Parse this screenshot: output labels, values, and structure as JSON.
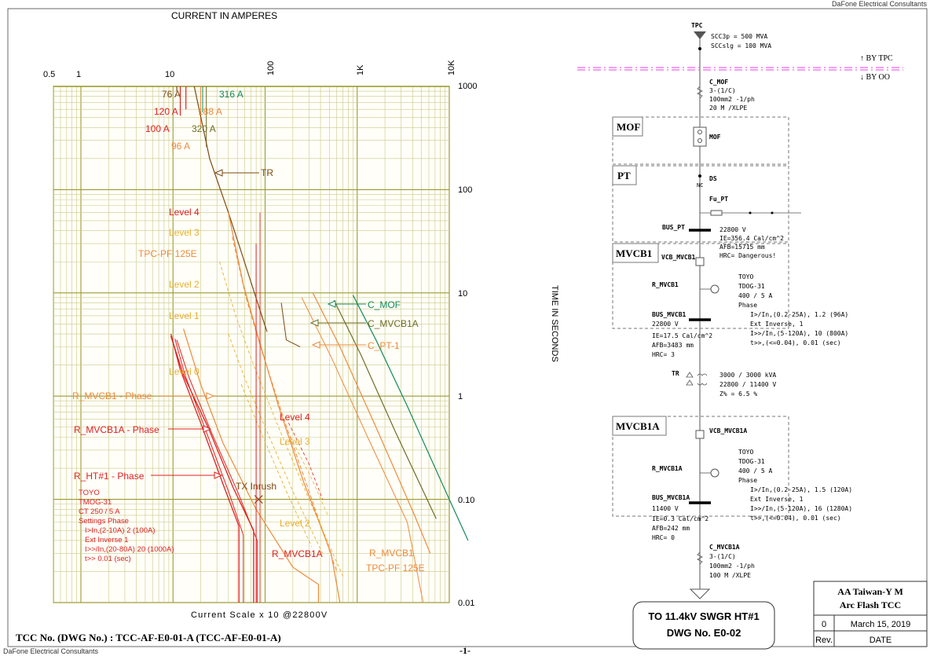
{
  "header": {
    "company_top": "DaFone Electrical Consultants",
    "company_bottom": "DaFone Electrical Consultants"
  },
  "tcc": {
    "x_title": "CURRENT IN AMPERES",
    "x_ticks": [
      "0.5",
      "1",
      "10",
      "100",
      "1K",
      "10K"
    ],
    "y_ticks": [
      "1000",
      "100",
      "10",
      "1",
      "0.10",
      "0.01"
    ],
    "y_title": "TIME IN SECONDS",
    "bottom_scale": "Current Scale  x 10  @22800V",
    "colors": {
      "grid_major": "#9b9b2f",
      "grid_minor": "#c9c98a",
      "red": "#e02020",
      "orange": "#ee8a3a",
      "gold": "#e8b030",
      "brown": "#7a4a12",
      "olive": "#6e6e28",
      "green": "#138a5a"
    },
    "labels": {
      "a76": "76 A",
      "a316": "316 A",
      "a120": "120 A",
      "a188": "188 A",
      "a100": "100 A",
      "a320": "320 A",
      "a96": "96 A",
      "tr": "TR",
      "level4": "Level 4",
      "level3": "Level 3",
      "tpc_pf": "TPC-PF 125E",
      "level2": "Level 2",
      "level1": "Level 1",
      "level0": "Level 0",
      "c_mof": "C_MOF",
      "c_mvcb1a": "C_MVCB1A",
      "c_pt1": "C_PT-1",
      "r_mvcb1": "R_MVCB1 - Phase",
      "r_mvcb1a": "R_MVCB1A - Phase",
      "r_ht1": "R_HT#1 - Phase",
      "level4b": "Level 4",
      "level3b": "Level 3",
      "tx_inrush": "TX Inrush",
      "level2b": "Level 2",
      "r_mvcb1a_bottom": "R_MVCB1A",
      "r_mvcb1_bottom": "R_MVCB1",
      "tpc_pf_bottom": "TPC-PF 125E"
    },
    "relay_note": [
      "TOYO",
      "TMOG-31",
      "CT 250 / 5 A",
      "Settings Phase",
      "I>In,(2-10A) 2 (100A)",
      "Ext Inverse 1",
      "I>>/In,(20-80A) 20 (1000A)",
      "t>> 0.01 (sec)"
    ]
  },
  "sld": {
    "tpc": "TPC",
    "scc": [
      "SCC3p = 500 MVA",
      "SCCslg = 100 MVA"
    ],
    "by_tpc": "↑ BY  TPC",
    "by_oo": "↓ BY  OO",
    "c_mof": {
      "name": "C_MOF",
      "lines": [
        "3-(1/C)",
        "100mm2 -1/ph",
        "20 M /XLPE"
      ]
    },
    "mof_box": "MOF",
    "mof_label": "MOF",
    "pt_box": "PT",
    "ds": "DS",
    "nc": "NC",
    "fu_pt": "Fu_PT",
    "bus_pt": {
      "name": "BUS_PT",
      "lines": [
        "22800  V",
        "IE=356.4 Cal/cm^2",
        "AFB=15715  mm",
        "HRC= Dangerous!"
      ]
    },
    "mvcb1_box": "MVCB1",
    "vcb_mvcb1": "VCB_MVCB1",
    "r_mvcb1": {
      "name": "R_MVCB1",
      "lines": [
        "TOYO",
        "TDOG-31",
        "400 / 5 A",
        "Phase",
        "I>/In,(0.2-25A), 1.2 (96A)",
        "Ext Inverse, 1",
        "I>>/In,(5-120A), 10 (800A)",
        "t>>,(<=0.04), 0.01 (sec)"
      ]
    },
    "bus_mvcb1": {
      "name": "BUS_MVCB1",
      "lines": [
        "22800  V",
        "IE=17.5 Cal/cm^2",
        "AFB=3483 mm",
        "HRC= 3"
      ]
    },
    "tr": {
      "name": "TR",
      "lines": [
        "3000 / 3000 kVA",
        "22800 / 11400 V",
        "Z% = 6.5 %"
      ]
    },
    "mvcb1a_box": "MVCB1A",
    "vcb_mvcb1a": "VCB_MVCB1A",
    "r_mvcb1a": {
      "name": "R_MVCB1A",
      "lines": [
        "TOYO",
        "TDOG-31",
        "400 / 5 A",
        "Phase",
        "I>/In,(0.2-25A), 1.5 (120A)",
        "Ext Inverse, 1",
        "I>>/In,(5-120A), 16 (1280A)",
        "t>>,(<=0.04), 0.01 (sec)"
      ]
    },
    "bus_mvcb1a": {
      "name": "BUS_MVCB1A",
      "lines": [
        "11400  V",
        "IE=0.3 Cal/cm^2",
        "AFB=242 mm",
        "HRC= 0"
      ]
    },
    "c_mvcb1a": {
      "name": "C_MVCB1A",
      "lines": [
        "3-(1/C)",
        "100mm2 -1/ph",
        "100 M /XLPE"
      ]
    },
    "to_box": [
      "TO 11.4kV SWGR HT#1",
      "DWG No. E0-02"
    ]
  },
  "title_block": {
    "project": "AA Taiwan-Y M",
    "subtitle": "Arc Flash TCC",
    "rev": "0",
    "date": "March 15, 2019",
    "rev_h": "Rev.",
    "date_h": "DATE"
  },
  "footer": {
    "tcc_no": "TCC No. (DWG No.) :  TCC-AF-E0-01-A (TCC-AF-E0-01-A)",
    "page": "-1-"
  }
}
